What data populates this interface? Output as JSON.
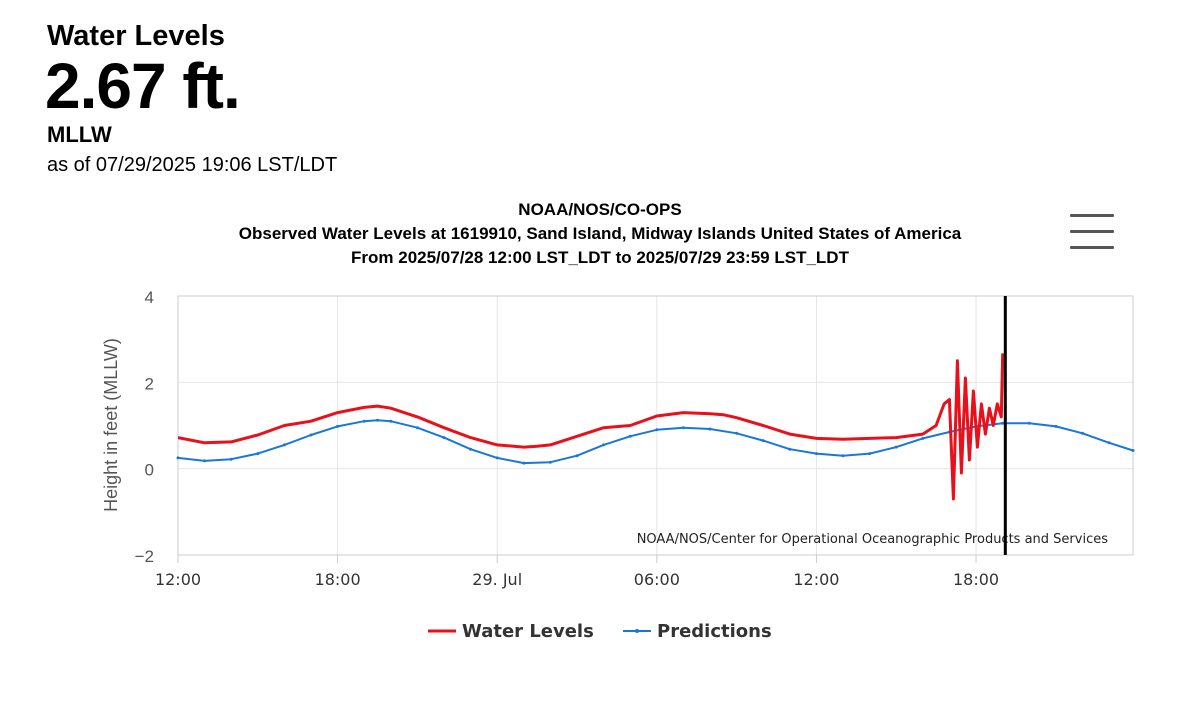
{
  "header": {
    "title": "Water Levels",
    "value": "2.67 ft.",
    "datum": "MLLW",
    "as_of": "as of 07/29/2025 19:06 LST/LDT"
  },
  "menu": {
    "icon": "hamburger-menu-icon"
  },
  "chart_data": {
    "type": "line",
    "title": "NOAA/NOS/CO-OPS",
    "subtitle": "Observed Water Levels at 1619910, Sand Island, Midway Islands United States of America",
    "subtitle2": "From 2025/07/28 12:00 LST_LDT to 2025/07/29 23:59 LST_LDT",
    "xlabel": "",
    "ylabel": "Height in feet (MLLW)",
    "credit": "NOAA/NOS/Center for Operational Oceanographic Products and Services",
    "x_range_hours": [
      0,
      35.9
    ],
    "ylim": [
      -2,
      4
    ],
    "y_ticks": [
      {
        "value": 4,
        "label": "4"
      },
      {
        "value": 2,
        "label": "2"
      },
      {
        "value": 0,
        "label": "0"
      },
      {
        "value": -2,
        "label": "−2"
      }
    ],
    "x_ticks": [
      {
        "hour": 0,
        "label": "12:00"
      },
      {
        "hour": 6,
        "label": "18:00"
      },
      {
        "hour": 12,
        "label": "29. Jul"
      },
      {
        "hour": 18,
        "label": "06:00"
      },
      {
        "hour": 24,
        "label": "12:00"
      },
      {
        "hour": 30,
        "label": "18:00"
      }
    ],
    "now_marker_hour": 31.1,
    "grid": true,
    "legend_position": "bottom-center",
    "series": [
      {
        "name": "Water Levels",
        "color": "#e8101a",
        "hours": [
          0,
          1,
          2,
          3,
          4,
          5,
          6,
          7,
          7.5,
          8,
          9,
          10,
          11,
          12,
          13,
          13.5,
          14,
          15,
          16,
          17,
          18,
          19,
          20,
          20.5,
          21,
          22,
          23,
          24,
          25,
          26,
          27,
          28,
          28.5,
          28.8,
          29.0,
          29.15,
          29.3,
          29.45,
          29.6,
          29.75,
          29.9,
          30.05,
          30.2,
          30.35,
          30.5,
          30.65,
          30.8,
          30.95,
          31.0
        ],
        "values": [
          0.72,
          0.6,
          0.62,
          0.78,
          1.0,
          1.1,
          1.3,
          1.42,
          1.45,
          1.4,
          1.2,
          0.95,
          0.72,
          0.55,
          0.5,
          0.52,
          0.55,
          0.75,
          0.95,
          1.0,
          1.22,
          1.3,
          1.27,
          1.25,
          1.18,
          1.0,
          0.8,
          0.7,
          0.68,
          0.7,
          0.72,
          0.8,
          1.0,
          1.5,
          1.6,
          -0.7,
          2.5,
          -0.1,
          2.1,
          0.2,
          1.8,
          0.5,
          1.5,
          0.8,
          1.4,
          1.0,
          1.5,
          1.2,
          2.67
        ]
      },
      {
        "name": "Predictions",
        "color": "#1a77d9",
        "hours": [
          0,
          1,
          2,
          3,
          4,
          5,
          6,
          7,
          7.5,
          8,
          9,
          10,
          11,
          12,
          13,
          14,
          15,
          16,
          17,
          18,
          19,
          20,
          21,
          22,
          23,
          24,
          25,
          26,
          27,
          28,
          29,
          30,
          31,
          32,
          33,
          34,
          35,
          35.9
        ],
        "values": [
          0.25,
          0.18,
          0.22,
          0.35,
          0.55,
          0.78,
          0.98,
          1.1,
          1.12,
          1.1,
          0.95,
          0.72,
          0.45,
          0.25,
          0.13,
          0.15,
          0.3,
          0.55,
          0.75,
          0.9,
          0.95,
          0.92,
          0.82,
          0.65,
          0.45,
          0.35,
          0.3,
          0.35,
          0.5,
          0.7,
          0.85,
          0.98,
          1.05,
          1.05,
          0.98,
          0.82,
          0.6,
          0.42
        ]
      }
    ]
  }
}
